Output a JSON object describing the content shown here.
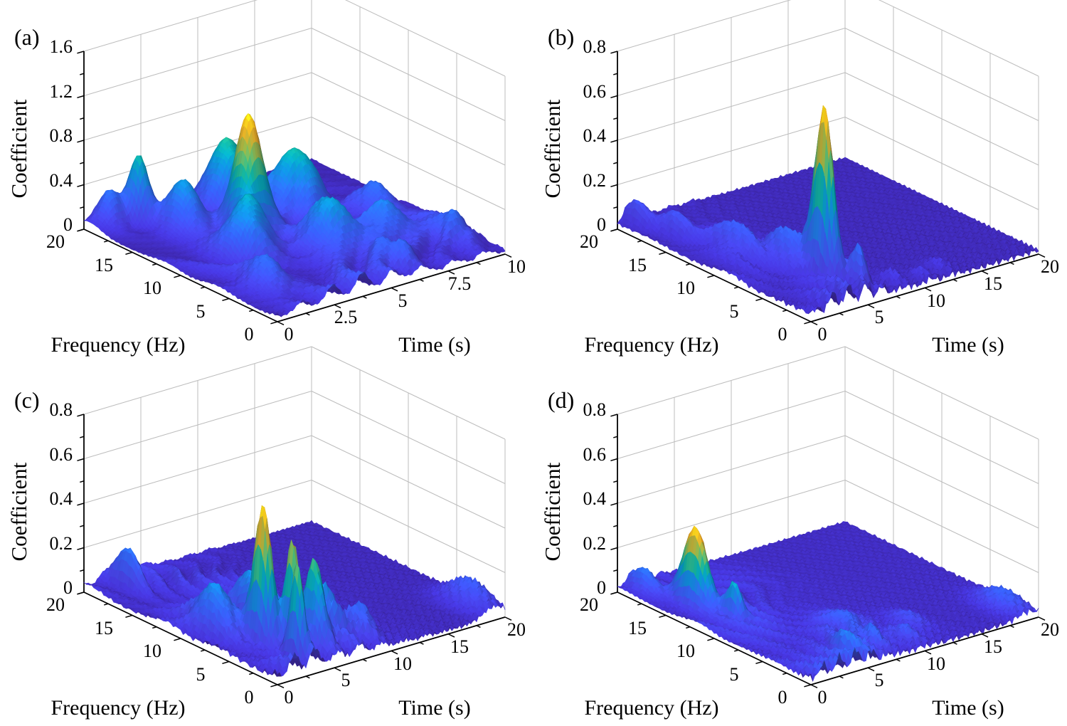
{
  "figure": {
    "background": "#ffffff",
    "layout": "2x2 grid of 3D wavelet-coefficient surface plots",
    "view": "3d perspective, azimuth about -37.5 deg, elevation about 30 deg, grid on"
  },
  "colors": {
    "background": "#ffffff",
    "grid_line": "#bdbdbd",
    "axis_line": "#000000",
    "text": "#000000",
    "colormap_name": "parula",
    "colormap_stops": [
      [
        0.0,
        62,
        38,
        168
      ],
      [
        0.0625,
        71,
        54,
        219
      ],
      [
        0.125,
        72,
        71,
        235
      ],
      [
        0.1875,
        63,
        88,
        247
      ],
      [
        0.25,
        53,
        102,
        252
      ],
      [
        0.3125,
        44,
        120,
        250
      ],
      [
        0.375,
        24,
        142,
        237
      ],
      [
        0.4375,
        13,
        158,
        226
      ],
      [
        0.5,
        7,
        179,
        198
      ],
      [
        0.5625,
        21,
        190,
        168
      ],
      [
        0.625,
        63,
        201,
        139
      ],
      [
        0.6875,
        113,
        201,
        113
      ],
      [
        0.75,
        160,
        198,
        78
      ],
      [
        0.8125,
        203,
        187,
        58
      ],
      [
        0.875,
        251,
        193,
        39
      ],
      [
        0.9375,
        254,
        219,
        31
      ],
      [
        1.0,
        249,
        251,
        21
      ]
    ]
  },
  "chart_data": [
    {
      "type": "surface3d",
      "panel_label": "(a)",
      "xlabel": "Time (s)",
      "ylabel": "Frequency (Hz)",
      "zlabel": "Coefficient",
      "x_range": [
        0,
        10
      ],
      "x_ticks": [
        0,
        2.5,
        5,
        7.5,
        10
      ],
      "x_tick_labels": [
        "0",
        "2.5",
        "5",
        "7.5",
        "10"
      ],
      "x_minor_ticks": [
        1.25,
        3.75,
        6.25,
        8.75
      ],
      "y_range": [
        0,
        20
      ],
      "y_ticks": [
        0,
        5,
        10,
        15,
        20
      ],
      "y_tick_labels": [
        "0",
        "5",
        "10",
        "15",
        "20"
      ],
      "y_minor_ticks": [
        2.5,
        7.5,
        12.5,
        17.5
      ],
      "z_range": [
        0,
        1.6
      ],
      "z_ticks": [
        0,
        0.4,
        0.8,
        1.2,
        1.6
      ],
      "z_tick_labels": [
        "0",
        "0.4",
        "0.8",
        "1.2",
        "1.6"
      ],
      "z_minor_ticks": [
        0.2,
        0.6,
        1.0,
        1.4
      ],
      "peak_summary": {
        "max_coefficient": 1.05,
        "time_s": 3.9,
        "frequency_hz": 12
      },
      "peaks": [
        [
          3.9,
          12.0,
          1.02,
          0.6,
          1.6
        ],
        [
          1.7,
          18.3,
          0.55,
          0.38,
          1.1
        ],
        [
          0.8,
          19.2,
          0.3,
          0.5,
          1.2
        ],
        [
          4.8,
          16.5,
          0.6,
          0.85,
          1.9
        ],
        [
          6.4,
          13.0,
          0.58,
          0.9,
          2.1
        ],
        [
          2.4,
          15.3,
          0.45,
          0.65,
          1.8
        ],
        [
          2.7,
          9.5,
          0.5,
          0.75,
          2.0
        ],
        [
          5.2,
          7.0,
          0.46,
          0.85,
          2.2
        ],
        [
          1.4,
          4.5,
          0.28,
          0.65,
          1.9
        ],
        [
          6.0,
          2.0,
          0.22,
          0.55,
          1.3
        ],
        [
          7.2,
          6.0,
          0.32,
          0.85,
          2.0
        ],
        [
          8.5,
          10.0,
          0.28,
          0.7,
          1.9
        ],
        [
          9.0,
          3.0,
          0.2,
          0.6,
          1.5
        ],
        [
          9.2,
          5.5,
          0.15,
          0.9,
          2.6
        ]
      ],
      "floor": {
        "amp": 0.17,
        "t_center": 4.0,
        "t_width": 5.0,
        "f_scale": 16,
        "seed": 1.3,
        "base": 0.015
      }
    },
    {
      "type": "surface3d",
      "panel_label": "(b)",
      "xlabel": "Time (s)",
      "ylabel": "Frequency (Hz)",
      "zlabel": "Coefficient",
      "x_range": [
        0,
        20
      ],
      "x_ticks": [
        0,
        5,
        10,
        15,
        20
      ],
      "x_tick_labels": [
        "0",
        "5",
        "10",
        "15",
        "20"
      ],
      "x_minor_ticks": [
        2.5,
        7.5,
        12.5,
        17.5
      ],
      "y_range": [
        0,
        20
      ],
      "y_ticks": [
        0,
        5,
        10,
        15,
        20
      ],
      "y_tick_labels": [
        "0",
        "5",
        "10",
        "15",
        "20"
      ],
      "y_minor_ticks": [
        2.5,
        7.5,
        12.5,
        17.5
      ],
      "z_range": [
        0,
        0.8
      ],
      "z_ticks": [
        0,
        0.2,
        0.4,
        0.6,
        0.8
      ],
      "z_tick_labels": [
        "0",
        "0.2",
        "0.4",
        "0.6",
        "0.8"
      ],
      "z_minor_ticks": [
        0.1,
        0.3,
        0.5,
        0.7
      ],
      "peak_summary": {
        "max_coefficient": 0.75,
        "time_s": 5.0,
        "frequency_hz": 4.5
      },
      "peaks": [
        [
          5.0,
          4.5,
          0.74,
          0.5,
          1.25
        ],
        [
          4.4,
          7.5,
          0.16,
          0.95,
          2.3
        ],
        [
          5.9,
          2.0,
          0.16,
          0.5,
          1.0
        ],
        [
          1.8,
          16.0,
          0.11,
          0.7,
          2.0
        ],
        [
          2.8,
          11.0,
          0.11,
          0.95,
          2.6
        ],
        [
          1.0,
          19.0,
          0.09,
          0.55,
          1.5
        ],
        [
          8.5,
          1.5,
          0.05,
          0.6,
          1.2
        ],
        [
          10.5,
          1.0,
          0.045,
          0.6,
          1.0
        ],
        [
          12.5,
          1.5,
          0.04,
          0.7,
          1.2
        ]
      ],
      "floor": {
        "amp": 0.085,
        "t_center": 3.2,
        "t_width": 3.6,
        "f_scale": 10,
        "seed": 2.7,
        "base": 0.018
      }
    },
    {
      "type": "surface3d",
      "panel_label": "(c)",
      "xlabel": "Time (s)",
      "ylabel": "Frequency (Hz)",
      "zlabel": "Coefficient",
      "x_range": [
        0,
        20
      ],
      "x_ticks": [
        0,
        5,
        10,
        15,
        20
      ],
      "x_tick_labels": [
        "0",
        "5",
        "10",
        "15",
        "20"
      ],
      "x_minor_ticks": [
        2.5,
        7.5,
        12.5,
        17.5
      ],
      "y_range": [
        0,
        20
      ],
      "y_ticks": [
        0,
        5,
        10,
        15,
        20
      ],
      "y_tick_labels": [
        "0",
        "5",
        "10",
        "15",
        "20"
      ],
      "y_minor_ticks": [
        2.5,
        7.5,
        12.5,
        17.5
      ],
      "z_range": [
        0,
        0.8
      ],
      "z_ticks": [
        0,
        0.2,
        0.4,
        0.6,
        0.8
      ],
      "z_tick_labels": [
        "0",
        "0.2",
        "0.4",
        "0.6",
        "0.8"
      ],
      "z_minor_ticks": [
        0.1,
        0.3,
        0.5,
        0.7
      ],
      "peak_summary": {
        "max_coefficient": 0.62,
        "time_s": 3.0,
        "frequency_hz": 5
      },
      "peaks": [
        [
          3.0,
          5.0,
          0.6,
          0.55,
          1.15
        ],
        [
          3.9,
          3.0,
          0.47,
          0.45,
          0.95
        ],
        [
          3.0,
          1.5,
          0.4,
          0.4,
          0.85
        ],
        [
          5.5,
          2.5,
          0.34,
          0.6,
          1.2
        ],
        [
          2.3,
          18.0,
          0.15,
          0.5,
          1.6
        ],
        [
          1.8,
          8.5,
          0.22,
          0.8,
          2.2
        ],
        [
          5.2,
          8.5,
          0.2,
          0.95,
          2.4
        ],
        [
          7.5,
          4.0,
          0.16,
          0.85,
          1.7
        ],
        [
          9.5,
          2.5,
          0.12,
          0.85,
          1.5
        ],
        [
          19.0,
          2.5,
          0.12,
          1.3,
          2.6
        ]
      ],
      "floor": {
        "amp": 0.13,
        "t_center": 4.5,
        "t_width": 5.5,
        "f_scale": 11,
        "seed": 4.1,
        "base": 0.015
      }
    },
    {
      "type": "surface3d",
      "panel_label": "(d)",
      "xlabel": "Time (s)",
      "ylabel": "Frequency (Hz)",
      "zlabel": "Coefficient",
      "x_range": [
        0,
        20
      ],
      "x_ticks": [
        0,
        5,
        10,
        15,
        20
      ],
      "x_tick_labels": [
        "0",
        "5",
        "10",
        "15",
        "20"
      ],
      "x_minor_ticks": [
        2.5,
        7.5,
        12.5,
        17.5
      ],
      "y_range": [
        0,
        20
      ],
      "y_ticks": [
        0,
        5,
        10,
        15,
        20
      ],
      "y_tick_labels": [
        "0",
        "5",
        "10",
        "15",
        "20"
      ],
      "y_minor_ticks": [
        2.5,
        7.5,
        12.5,
        17.5
      ],
      "z_range": [
        0,
        0.8
      ],
      "z_ticks": [
        0,
        0.2,
        0.4,
        0.6,
        0.8
      ],
      "z_tick_labels": [
        "0",
        "0.2",
        "0.4",
        "0.6",
        "0.8"
      ],
      "z_minor_ticks": [
        0.1,
        0.3,
        0.5,
        0.7
      ],
      "peak_summary": {
        "max_coefficient": 0.37,
        "time_s": 2.2,
        "frequency_hz": 14.5
      },
      "peaks": [
        [
          2.2,
          14.5,
          0.355,
          0.6,
          1.7
        ],
        [
          2.6,
          11.0,
          0.15,
          0.4,
          1.0
        ],
        [
          1.2,
          18.5,
          0.09,
          0.6,
          1.6
        ],
        [
          5.0,
          2.0,
          0.055,
          0.8,
          1.3
        ],
        [
          7.5,
          2.5,
          0.055,
          0.8,
          1.4
        ],
        [
          10.0,
          2.0,
          0.05,
          0.8,
          1.3
        ],
        [
          12.0,
          4.0,
          0.045,
          1.0,
          1.8
        ],
        [
          8.0,
          6.0,
          0.05,
          1.5,
          2.2
        ],
        [
          19.0,
          2.5,
          0.075,
          1.2,
          2.4
        ]
      ],
      "floor": {
        "amp": 0.075,
        "t_center": 3.5,
        "t_width": 5.0,
        "f_scale": 9,
        "seed": 6.9,
        "base": 0.013
      }
    }
  ]
}
